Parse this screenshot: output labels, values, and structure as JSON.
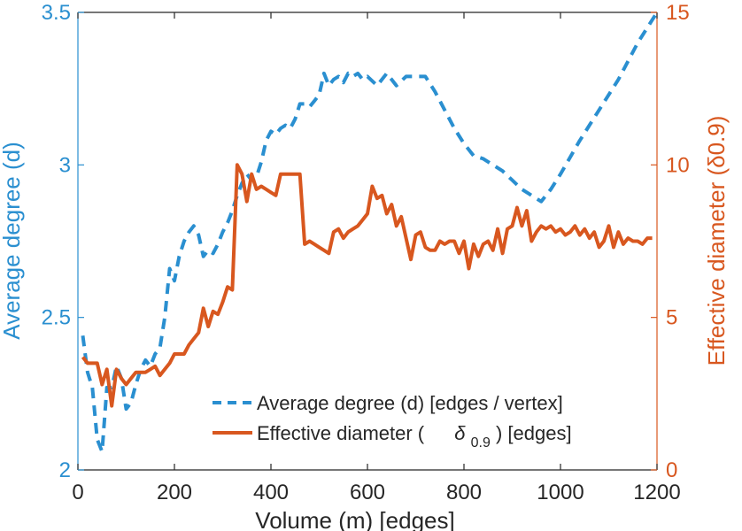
{
  "chart_data": {
    "type": "line",
    "xlabel": "Volume (m) [edges]",
    "ylabel_left": "Average degree (d)",
    "ylabel_right": "Effective diameter (δ0.9)",
    "xlim": [
      0,
      1200
    ],
    "ylim_left": [
      2,
      3.5
    ],
    "ylim_right": [
      0,
      15
    ],
    "xticks": [
      "0",
      "200",
      "400",
      "600",
      "800",
      "1000",
      "1200"
    ],
    "yticks_left": [
      "2",
      "2.5",
      "3",
      "3.5"
    ],
    "yticks_right": [
      "0",
      "5",
      "10",
      "15"
    ],
    "grid": false,
    "legend_position": "bottom-center",
    "legend": {
      "avg_degree": "Average degree (d) [edges / vertex]",
      "eff_diameter_prefix": "Effective diameter (",
      "eff_diameter_symbol": "δ",
      "eff_diameter_sub": "0.9",
      "eff_diameter_suffix": ") [edges]"
    },
    "colors": {
      "avg_degree": "#2a8fd0",
      "eff_diameter": "#d8571f",
      "axis": "#262626"
    },
    "series": [
      {
        "name": "Average degree (d) [edges / vertex]",
        "axis": "left",
        "style": "dashed",
        "x": [
          10,
          20,
          30,
          40,
          50,
          60,
          70,
          80,
          90,
          100,
          110,
          120,
          130,
          140,
          150,
          160,
          170,
          180,
          190,
          200,
          210,
          220,
          230,
          240,
          250,
          260,
          270,
          280,
          290,
          300,
          310,
          320,
          330,
          340,
          350,
          360,
          370,
          380,
          390,
          400,
          410,
          420,
          430,
          440,
          450,
          460,
          470,
          480,
          490,
          500,
          510,
          520,
          530,
          540,
          550,
          560,
          570,
          580,
          590,
          600,
          620,
          640,
          660,
          680,
          700,
          720,
          740,
          760,
          780,
          800,
          820,
          840,
          860,
          880,
          900,
          920,
          940,
          960,
          980,
          1000,
          1040,
          1080,
          1120,
          1160,
          1200
        ],
        "values": [
          2.44,
          2.32,
          2.27,
          2.1,
          2.06,
          2.27,
          2.27,
          2.34,
          2.3,
          2.2,
          2.22,
          2.28,
          2.33,
          2.36,
          2.34,
          2.38,
          2.4,
          2.5,
          2.66,
          2.62,
          2.7,
          2.75,
          2.78,
          2.8,
          2.77,
          2.7,
          2.72,
          2.71,
          2.74,
          2.78,
          2.81,
          2.85,
          2.9,
          2.94,
          2.97,
          2.95,
          2.96,
          3.01,
          3.08,
          3.11,
          3.1,
          3.12,
          3.13,
          3.12,
          3.15,
          3.2,
          3.2,
          3.19,
          3.21,
          3.23,
          3.3,
          3.26,
          3.28,
          3.29,
          3.27,
          3.3,
          3.29,
          3.3,
          3.28,
          3.29,
          3.26,
          3.3,
          3.26,
          3.29,
          3.29,
          3.29,
          3.24,
          3.18,
          3.12,
          3.07,
          3.03,
          3.02,
          3.0,
          2.98,
          2.95,
          2.92,
          2.9,
          2.88,
          2.92,
          2.97,
          3.08,
          3.18,
          3.28,
          3.4,
          3.5
        ]
      },
      {
        "name": "Effective diameter (δ0.9) [edges]",
        "axis": "right",
        "style": "solid",
        "x": [
          10,
          20,
          30,
          40,
          50,
          60,
          70,
          80,
          90,
          100,
          110,
          120,
          130,
          140,
          150,
          160,
          170,
          180,
          190,
          200,
          210,
          220,
          230,
          240,
          250,
          260,
          270,
          280,
          290,
          300,
          310,
          320,
          330,
          340,
          350,
          360,
          370,
          380,
          390,
          400,
          410,
          420,
          430,
          440,
          450,
          460,
          470,
          480,
          490,
          500,
          510,
          520,
          530,
          540,
          550,
          560,
          570,
          580,
          590,
          600,
          610,
          620,
          630,
          640,
          650,
          660,
          670,
          680,
          690,
          700,
          710,
          720,
          730,
          740,
          750,
          760,
          770,
          780,
          790,
          800,
          810,
          820,
          830,
          840,
          850,
          860,
          870,
          880,
          890,
          900,
          910,
          920,
          930,
          940,
          950,
          960,
          970,
          980,
          990,
          1000,
          1010,
          1020,
          1030,
          1040,
          1050,
          1060,
          1070,
          1080,
          1090,
          1100,
          1110,
          1120,
          1130,
          1140,
          1150,
          1160,
          1170,
          1180,
          1190
        ],
        "values": [
          3.7,
          3.5,
          3.5,
          3.5,
          2.8,
          3.3,
          2.1,
          3.3,
          3.0,
          2.8,
          3.0,
          3.2,
          3.2,
          3.2,
          3.3,
          3.4,
          3.1,
          3.3,
          3.5,
          3.8,
          3.8,
          3.8,
          4.1,
          4.3,
          4.5,
          5.3,
          4.7,
          5.2,
          5.1,
          5.5,
          6.0,
          5.9,
          10.0,
          9.7,
          8.8,
          9.7,
          9.2,
          9.3,
          9.2,
          9.1,
          9.0,
          9.7,
          9.7,
          9.7,
          9.7,
          9.7,
          7.4,
          7.5,
          7.4,
          7.3,
          7.2,
          7.1,
          7.8,
          7.9,
          7.6,
          7.8,
          7.9,
          8.0,
          8.2,
          8.4,
          9.3,
          8.9,
          9.0,
          8.4,
          8.7,
          8.0,
          8.3,
          7.6,
          6.9,
          7.7,
          7.8,
          7.3,
          7.2,
          7.2,
          7.5,
          7.4,
          7.5,
          7.5,
          7.1,
          7.5,
          6.6,
          7.4,
          7.0,
          7.4,
          7.5,
          7.2,
          7.9,
          7.1,
          7.9,
          8.0,
          8.6,
          8.0,
          8.5,
          7.5,
          7.8,
          8.0,
          7.9,
          8.0,
          7.8,
          7.9,
          7.7,
          7.8,
          8.0,
          7.7,
          7.9,
          7.6,
          7.8,
          7.3,
          7.5,
          8.0,
          7.3,
          7.8,
          7.4,
          7.6,
          7.5,
          7.5,
          7.4,
          7.6,
          7.6
        ]
      }
    ]
  }
}
